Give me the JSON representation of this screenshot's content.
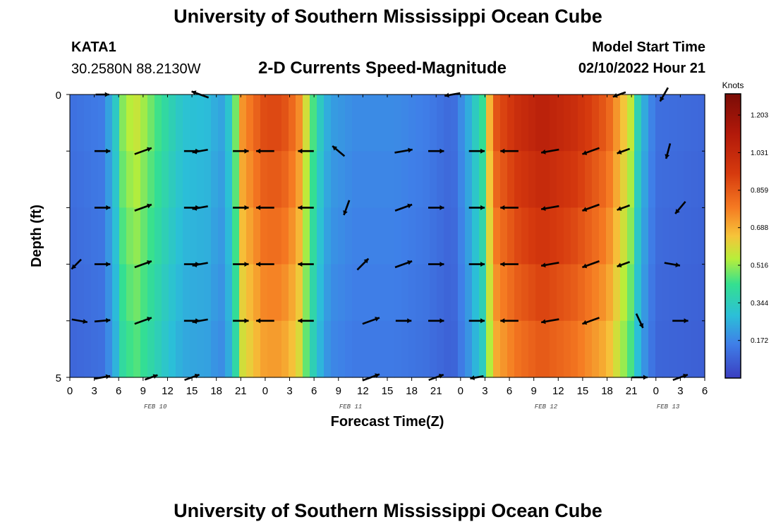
{
  "header": {
    "title": "University of Southern Mississippi Ocean Cube",
    "station": "KATA1",
    "coords": "30.2580N  88.2130W",
    "subtitle": "2-D Currents Speed-Magnitude",
    "model_start_label": "Model Start Time",
    "model_start_value": "02/10/2022 Hour 21"
  },
  "footer": {
    "title": "University of Southern Mississippi Ocean Cube"
  },
  "chart_data": {
    "type": "heatmap",
    "title": "2-D Currents Speed-Magnitude",
    "xlabel": "Forecast Time(Z)",
    "ylabel": "Depth (ft)",
    "x_hours_since_start": [
      0,
      78
    ],
    "ylim": [
      0,
      5
    ],
    "y_tick_labels": [
      "0",
      "5"
    ],
    "x_tick_labels": [
      "0",
      "3",
      "6",
      "9",
      "12",
      "15",
      "18",
      "21",
      "0",
      "3",
      "6",
      "9",
      "12",
      "15",
      "18",
      "21",
      "0",
      "3",
      "6",
      "9",
      "12",
      "15",
      "18",
      "21",
      "0",
      "3",
      "6"
    ],
    "date_labels": [
      {
        "label": "FEB 10",
        "hour": 10.5
      },
      {
        "label": "FEB 11",
        "hour": 34.5
      },
      {
        "label": "FEB 12",
        "hour": 58.5
      },
      {
        "label": "FEB 13",
        "hour": 73.5
      }
    ],
    "colorbar": {
      "title": "Knots",
      "ticks": [
        "1.203",
        "1.031",
        "0.859",
        "0.688",
        "0.516",
        "0.344",
        "0.172"
      ],
      "tick_values": [
        1.203,
        1.031,
        0.859,
        0.688,
        0.516,
        0.344,
        0.172
      ],
      "range": [
        0,
        1.3
      ]
    },
    "depth_levels": 5,
    "speed_profile_by_hour": [
      [
        0,
        0.12
      ],
      [
        4,
        0.15
      ],
      [
        5.5,
        0.3
      ],
      [
        6.5,
        0.5
      ],
      [
        8,
        0.58
      ],
      [
        10,
        0.48
      ],
      [
        12,
        0.38
      ],
      [
        14,
        0.3
      ],
      [
        17,
        0.28
      ],
      [
        18.5,
        0.22
      ],
      [
        20,
        0.35
      ],
      [
        21,
        0.72
      ],
      [
        24,
        0.9
      ],
      [
        26,
        0.9
      ],
      [
        28,
        0.78
      ],
      [
        29.5,
        0.5
      ],
      [
        31,
        0.3
      ],
      [
        32,
        0.22
      ],
      [
        35,
        0.18
      ],
      [
        40,
        0.18
      ],
      [
        44,
        0.15
      ],
      [
        47,
        0.1
      ],
      [
        49,
        0.25
      ],
      [
        51,
        0.45
      ],
      [
        52,
        0.85
      ],
      [
        55,
        1.0
      ],
      [
        58,
        1.08
      ],
      [
        62,
        1.0
      ],
      [
        66,
        0.85
      ],
      [
        69,
        0.55
      ],
      [
        70,
        0.3
      ],
      [
        72,
        0.12
      ],
      [
        78,
        0.1
      ]
    ],
    "arrows": [
      {
        "hour": 4,
        "level": 0,
        "angle": 0,
        "len": 0.6
      },
      {
        "hour": 16,
        "level": 0,
        "angle": 160,
        "len": 0.8
      },
      {
        "hour": 47,
        "level": 0,
        "angle": 190,
        "len": 0.7
      },
      {
        "hour": 67.5,
        "level": 0,
        "angle": 200,
        "len": 0.6
      },
      {
        "hour": 73,
        "level": 0,
        "angle": 240,
        "len": 0.7
      },
      {
        "hour": 4,
        "level": 1,
        "angle": 0,
        "len": 0.7
      },
      {
        "hour": 9,
        "level": 1,
        "angle": 20,
        "len": 0.8
      },
      {
        "hour": 15,
        "level": 1,
        "angle": 0,
        "len": 0.7
      },
      {
        "hour": 16,
        "level": 1,
        "angle": 190,
        "len": 0.7
      },
      {
        "hour": 21,
        "level": 1,
        "angle": 0,
        "len": 0.7
      },
      {
        "hour": 24,
        "level": 1,
        "angle": 180,
        "len": 0.8
      },
      {
        "hour": 29,
        "level": 1,
        "angle": 180,
        "len": 0.7
      },
      {
        "hour": 33,
        "level": 1,
        "angle": 140,
        "len": 0.7
      },
      {
        "hour": 41,
        "level": 1,
        "angle": 10,
        "len": 0.8
      },
      {
        "hour": 45,
        "level": 1,
        "angle": 0,
        "len": 0.7
      },
      {
        "hour": 50,
        "level": 1,
        "angle": 0,
        "len": 0.7
      },
      {
        "hour": 54,
        "level": 1,
        "angle": 180,
        "len": 0.8
      },
      {
        "hour": 59,
        "level": 1,
        "angle": 190,
        "len": 0.8
      },
      {
        "hour": 64,
        "level": 1,
        "angle": 200,
        "len": 0.8
      },
      {
        "hour": 68,
        "level": 1,
        "angle": 200,
        "len": 0.6
      },
      {
        "hour": 73.5,
        "level": 1,
        "angle": 255,
        "len": 0.7
      },
      {
        "hour": 4,
        "level": 2,
        "angle": 0,
        "len": 0.7
      },
      {
        "hour": 9,
        "level": 2,
        "angle": 20,
        "len": 0.8
      },
      {
        "hour": 15,
        "level": 2,
        "angle": 0,
        "len": 0.7
      },
      {
        "hour": 16,
        "level": 2,
        "angle": 190,
        "len": 0.7
      },
      {
        "hour": 21,
        "level": 2,
        "angle": 0,
        "len": 0.7
      },
      {
        "hour": 24,
        "level": 2,
        "angle": 180,
        "len": 0.8
      },
      {
        "hour": 29,
        "level": 2,
        "angle": 180,
        "len": 0.7
      },
      {
        "hour": 34,
        "level": 2,
        "angle": -110,
        "len": 0.7
      },
      {
        "hour": 41,
        "level": 2,
        "angle": 20,
        "len": 0.8
      },
      {
        "hour": 45,
        "level": 2,
        "angle": 0,
        "len": 0.7
      },
      {
        "hour": 50,
        "level": 2,
        "angle": 0,
        "len": 0.7
      },
      {
        "hour": 54,
        "level": 2,
        "angle": 180,
        "len": 0.8
      },
      {
        "hour": 59,
        "level": 2,
        "angle": 190,
        "len": 0.8
      },
      {
        "hour": 64,
        "level": 2,
        "angle": 200,
        "len": 0.8
      },
      {
        "hour": 68,
        "level": 2,
        "angle": 200,
        "len": 0.6
      },
      {
        "hour": 75,
        "level": 2,
        "angle": -130,
        "len": 0.7
      },
      {
        "hour": 4,
        "level": 3,
        "angle": 0,
        "len": 0.7
      },
      {
        "hour": 9,
        "level": 3,
        "angle": 20,
        "len": 0.8
      },
      {
        "hour": 15,
        "level": 3,
        "angle": 0,
        "len": 0.7
      },
      {
        "hour": 16,
        "level": 3,
        "angle": 190,
        "len": 0.7
      },
      {
        "hour": 21,
        "level": 3,
        "angle": 0,
        "len": 0.7
      },
      {
        "hour": 24,
        "level": 3,
        "angle": 180,
        "len": 0.8
      },
      {
        "hour": 29,
        "level": 3,
        "angle": 180,
        "len": 0.7
      },
      {
        "hour": 36,
        "level": 3,
        "angle": 45,
        "len": 0.7
      },
      {
        "hour": 41,
        "level": 3,
        "angle": 20,
        "len": 0.8
      },
      {
        "hour": 45,
        "level": 3,
        "angle": 0,
        "len": 0.7
      },
      {
        "hour": 50,
        "level": 3,
        "angle": 0,
        "len": 0.7
      },
      {
        "hour": 54,
        "level": 3,
        "angle": 180,
        "len": 0.8
      },
      {
        "hour": 59,
        "level": 3,
        "angle": 190,
        "len": 0.8
      },
      {
        "hour": 64,
        "level": 3,
        "angle": 200,
        "len": 0.8
      },
      {
        "hour": 68,
        "level": 3,
        "angle": 200,
        "len": 0.6
      },
      {
        "hour": 74,
        "level": 3,
        "angle": -10,
        "len": 0.7
      },
      {
        "hour": 0.8,
        "level": 3,
        "angle": -135,
        "len": 0.6
      },
      {
        "hour": 1.2,
        "level": 4,
        "angle": -10,
        "len": 0.7
      },
      {
        "hour": 4,
        "level": 4,
        "angle": 5,
        "len": 0.7
      },
      {
        "hour": 9,
        "level": 4,
        "angle": 20,
        "len": 0.8
      },
      {
        "hour": 15,
        "level": 4,
        "angle": 0,
        "len": 0.7
      },
      {
        "hour": 16,
        "level": 4,
        "angle": 190,
        "len": 0.7
      },
      {
        "hour": 21,
        "level": 4,
        "angle": 0,
        "len": 0.7
      },
      {
        "hour": 24,
        "level": 4,
        "angle": 180,
        "len": 0.8
      },
      {
        "hour": 29,
        "level": 4,
        "angle": 180,
        "len": 0.7
      },
      {
        "hour": 37,
        "level": 4,
        "angle": 20,
        "len": 0.8
      },
      {
        "hour": 41,
        "level": 4,
        "angle": 0,
        "len": 0.7
      },
      {
        "hour": 45,
        "level": 4,
        "angle": 0,
        "len": 0.7
      },
      {
        "hour": 50,
        "level": 4,
        "angle": 0,
        "len": 0.7
      },
      {
        "hour": 54,
        "level": 4,
        "angle": 180,
        "len": 0.8
      },
      {
        "hour": 59,
        "level": 4,
        "angle": 190,
        "len": 0.8
      },
      {
        "hour": 64,
        "level": 4,
        "angle": 200,
        "len": 0.8
      },
      {
        "hour": 70,
        "level": 4,
        "angle": -65,
        "len": 0.7
      },
      {
        "hour": 75,
        "level": 4,
        "angle": 0,
        "len": 0.7
      },
      {
        "hour": 4,
        "level": 5,
        "angle": 10,
        "len": 0.7
      },
      {
        "hour": 10,
        "level": 5,
        "angle": 20,
        "len": 0.6
      },
      {
        "hour": 15,
        "level": 5,
        "angle": 20,
        "len": 0.7
      },
      {
        "hour": 37,
        "level": 5,
        "angle": 20,
        "len": 0.8
      },
      {
        "hour": 45,
        "level": 5,
        "angle": 20,
        "len": 0.7
      },
      {
        "hour": 50,
        "level": 5,
        "angle": 190,
        "len": 0.6
      },
      {
        "hour": 70,
        "level": 5,
        "angle": 0,
        "len": 0.7
      },
      {
        "hour": 75,
        "level": 5,
        "angle": 20,
        "len": 0.7
      }
    ]
  }
}
